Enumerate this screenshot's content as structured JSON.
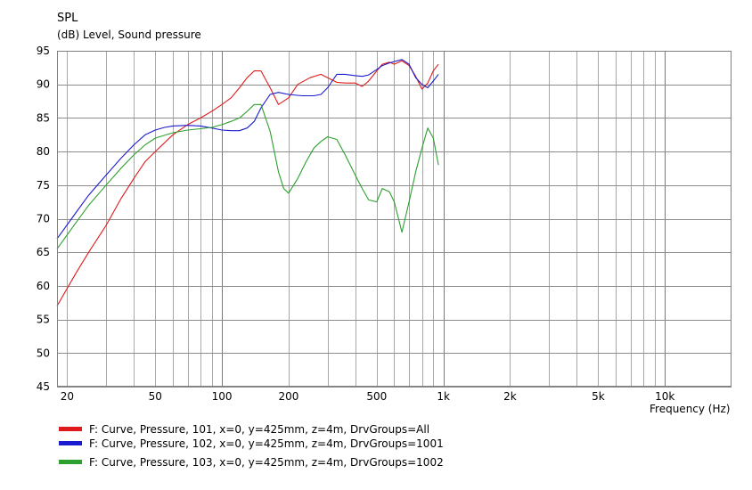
{
  "chart_data": {
    "type": "line",
    "title": "SPL",
    "subtitle": "(dB)  Level, Sound pressure",
    "xlabel": "Frequency  (Hz)",
    "xscale": "log",
    "xlim": [
      18,
      20000
    ],
    "ylim": [
      45,
      95
    ],
    "grid": true,
    "x_ticks": [
      {
        "value": 20,
        "label": "20"
      },
      {
        "value": 50,
        "label": "50"
      },
      {
        "value": 100,
        "label": "100"
      },
      {
        "value": 200,
        "label": "200"
      },
      {
        "value": 500,
        "label": "500"
      },
      {
        "value": 1000,
        "label": "1k"
      },
      {
        "value": 2000,
        "label": "2k"
      },
      {
        "value": 5000,
        "label": "5k"
      },
      {
        "value": 10000,
        "label": "10k"
      }
    ],
    "y_ticks": [
      {
        "value": 45,
        "label": "45"
      },
      {
        "value": 50,
        "label": "50"
      },
      {
        "value": 55,
        "label": "55"
      },
      {
        "value": 60,
        "label": "60"
      },
      {
        "value": 65,
        "label": "65"
      },
      {
        "value": 70,
        "label": "70"
      },
      {
        "value": 75,
        "label": "75"
      },
      {
        "value": 80,
        "label": "80"
      },
      {
        "value": 85,
        "label": "85"
      },
      {
        "value": 90,
        "label": "90"
      },
      {
        "value": 95,
        "label": "95"
      }
    ],
    "legend_placement": "bottom",
    "series": [
      {
        "name": "F: Curve, Pressure, 101, x=0, y=425mm, z=4m, DrvGroups=All",
        "color": "#e01a1a",
        "x": [
          18,
          22,
          25,
          30,
          35,
          40,
          45,
          50,
          60,
          70,
          80,
          90,
          100,
          110,
          120,
          130,
          140,
          150,
          165,
          180,
          200,
          220,
          250,
          280,
          300,
          330,
          360,
          400,
          430,
          460,
          500,
          530,
          570,
          600,
          650,
          700,
          750,
          800,
          850,
          900,
          950
        ],
        "y": [
          57,
          62,
          65,
          69,
          73,
          76,
          78.5,
          80,
          82.5,
          84,
          85,
          86,
          87,
          88,
          89.5,
          91,
          92,
          92,
          89.5,
          87,
          88,
          90,
          91,
          91.5,
          91,
          90.3,
          90.2,
          90.2,
          89.7,
          90.5,
          92,
          93,
          93.3,
          93,
          93.5,
          92.8,
          91.2,
          89.3,
          90.2,
          92,
          93
        ]
      },
      {
        "name": "F: Curve, Pressure, 102, x=0, y=425mm, z=4m, DrvGroups=1001",
        "color": "#1a1ad0",
        "x": [
          18,
          22,
          25,
          30,
          35,
          40,
          45,
          50,
          55,
          60,
          70,
          80,
          90,
          100,
          110,
          120,
          130,
          140,
          150,
          165,
          180,
          200,
          230,
          260,
          280,
          300,
          330,
          360,
          400,
          430,
          460,
          500,
          530,
          570,
          600,
          650,
          700,
          750,
          800,
          850,
          900,
          950
        ],
        "y": [
          67,
          71,
          73.5,
          76.5,
          79,
          81,
          82.5,
          83.2,
          83.6,
          83.8,
          83.9,
          83.8,
          83.5,
          83.2,
          83.1,
          83.1,
          83.5,
          84.5,
          86.5,
          88.5,
          88.8,
          88.5,
          88.3,
          88.3,
          88.5,
          89.5,
          91.5,
          91.5,
          91.3,
          91.2,
          91.4,
          92.2,
          92.8,
          93.2,
          93.4,
          93.7,
          93,
          91,
          90,
          89.5,
          90.5,
          91.5
        ]
      },
      {
        "name": "F: Curve, Pressure, 103, x=0, y=425mm, z=4m, DrvGroups=1002",
        "color": "#2ca02c",
        "x": [
          18,
          22,
          25,
          30,
          35,
          40,
          45,
          50,
          60,
          70,
          80,
          90,
          100,
          110,
          120,
          130,
          140,
          150,
          165,
          180,
          190,
          200,
          220,
          240,
          260,
          280,
          300,
          330,
          360,
          400,
          430,
          460,
          500,
          530,
          570,
          600,
          650,
          700,
          750,
          800,
          850,
          900,
          950
        ],
        "y": [
          65.5,
          69.5,
          72,
          75,
          77.5,
          79.5,
          81,
          82,
          82.8,
          83.2,
          83.4,
          83.6,
          84,
          84.5,
          85,
          86,
          87,
          87,
          83,
          77,
          74.5,
          73.8,
          76,
          78.5,
          80.5,
          81.5,
          82.2,
          81.8,
          79.5,
          76.5,
          74.5,
          72.8,
          72.5,
          74.5,
          74,
          72.5,
          68,
          72.5,
          77,
          80.5,
          83.5,
          82,
          78
        ]
      }
    ]
  }
}
